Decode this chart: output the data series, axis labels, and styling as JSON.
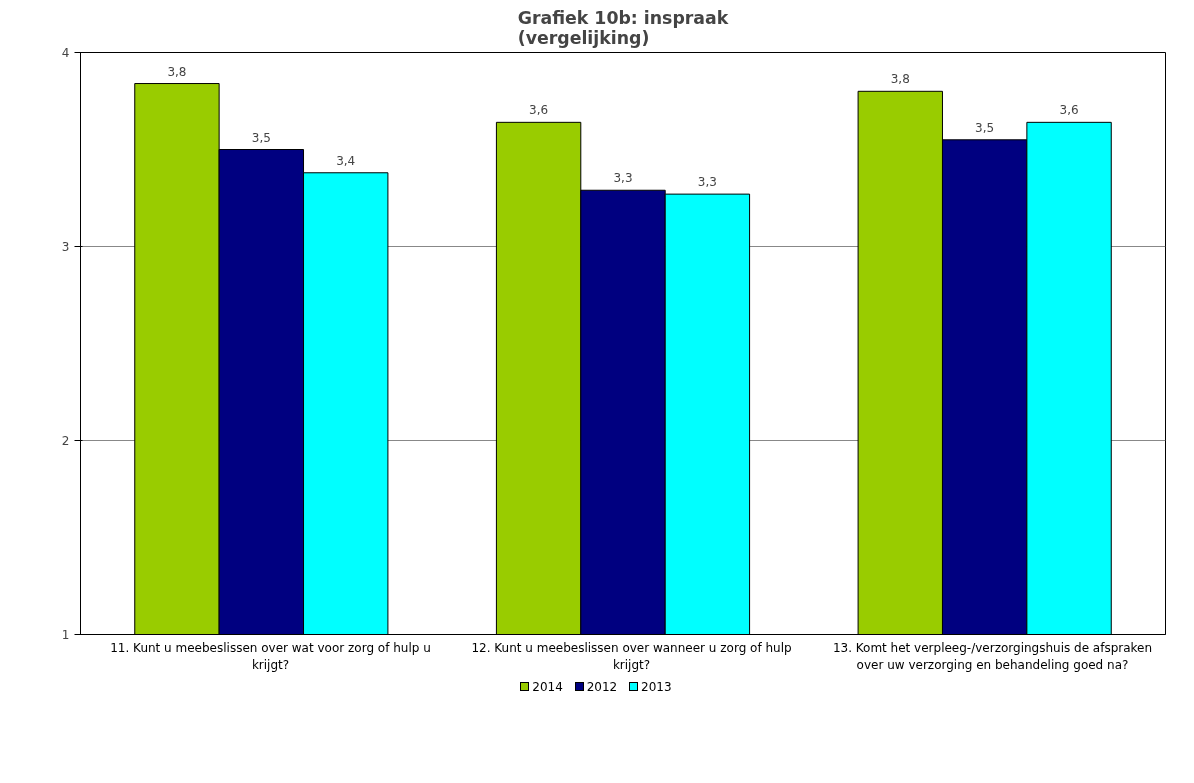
{
  "chart_data": {
    "type": "bar",
    "title": "Grafiek 10b: inspraak\n(vergelijking)",
    "categories": [
      "11. Kunt u meebeslissen over wat voor zorg of hulp u krijgt?",
      "12. Kunt u meebeslissen over wanneer u zorg of hulp krijgt?",
      "13. Komt het verpleeg-/verzorgingshuis de afspraken over uw verzorging en behandeling goed na?"
    ],
    "series": [
      {
        "name": "2014",
        "color": "#99cc00",
        "values": [
          3.84,
          3.64,
          3.8
        ],
        "value_labels": [
          "3,8",
          "3,6",
          "3,8"
        ]
      },
      {
        "name": "2012",
        "color": "#000080",
        "values": [
          3.5,
          3.29,
          3.55
        ],
        "value_labels": [
          "3,5",
          "3,3",
          "3,5"
        ]
      },
      {
        "name": "2013",
        "color": "#00ffff",
        "values": [
          3.38,
          3.27,
          3.64
        ],
        "value_labels": [
          "3,4",
          "3,3",
          "3,6"
        ]
      }
    ],
    "ylim": [
      1,
      4
    ],
    "yticks": [
      1,
      2,
      3,
      4
    ],
    "grid": "y",
    "legend": "bottom"
  }
}
